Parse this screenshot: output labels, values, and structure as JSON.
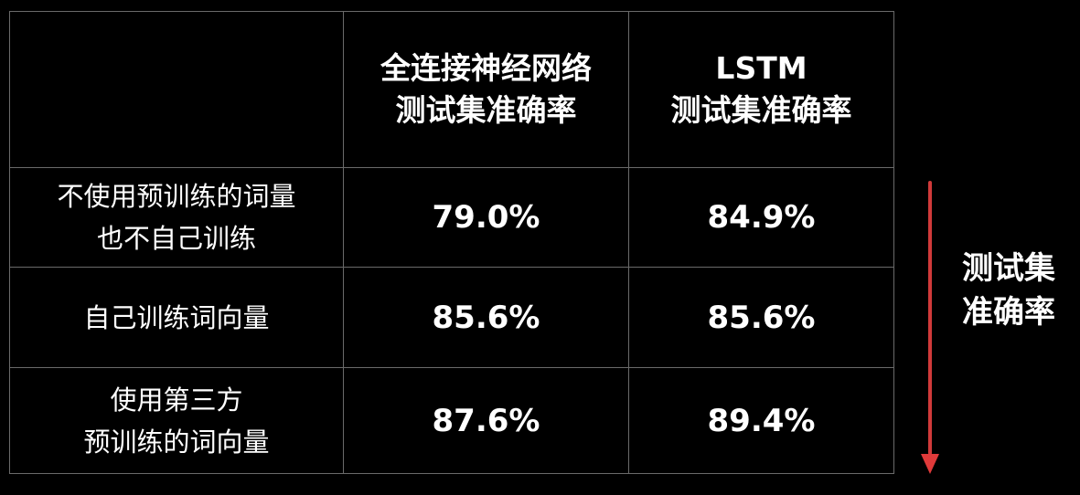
{
  "table": {
    "header": {
      "corner": "",
      "fc": [
        "全连接神经网络",
        "测试集准确率"
      ],
      "lstm": [
        "LSTM",
        "测试集准确率"
      ]
    },
    "rows": [
      {
        "label": [
          "不使用预训练的词量",
          "也不自己训练"
        ],
        "fc": "79.0%",
        "lstm": "84.9%"
      },
      {
        "label": [
          "自己训练词向量"
        ],
        "fc": "85.6%",
        "lstm": "85.6%"
      },
      {
        "label": [
          "使用第三方",
          "预训练的词向量"
        ],
        "fc": "87.6%",
        "lstm": "89.4%"
      }
    ]
  },
  "side_label": [
    "测试集",
    "准确率"
  ],
  "colors": {
    "background": "#000000",
    "text": "#ffffff",
    "grid": "#6a6a6a",
    "arrow": "#e03a3a"
  }
}
